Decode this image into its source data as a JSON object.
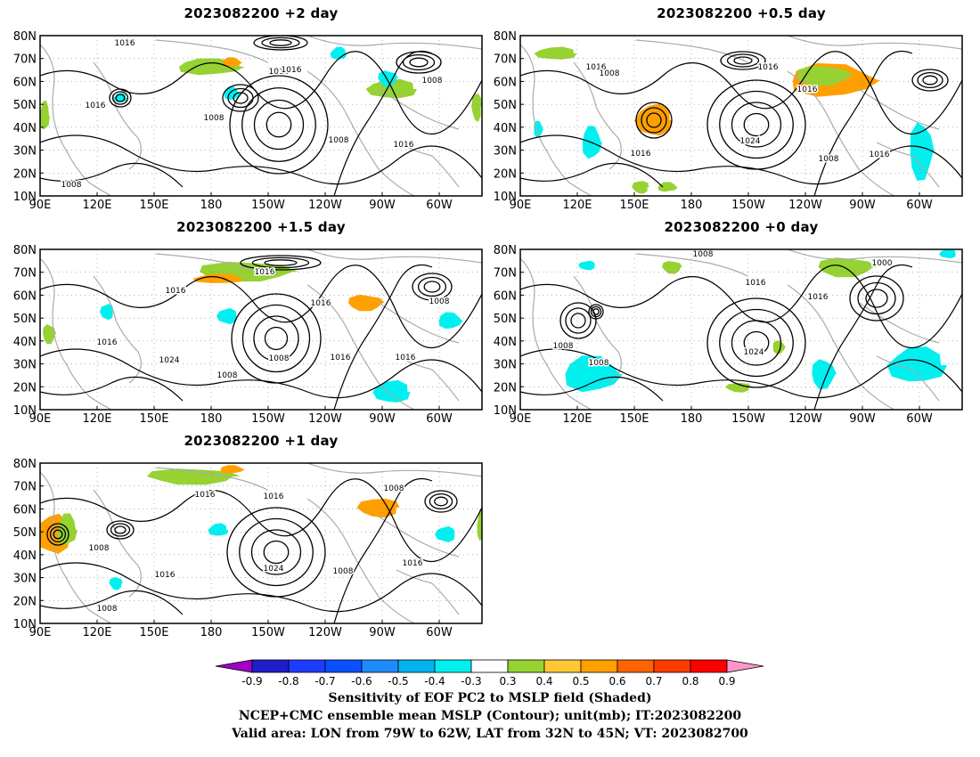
{
  "panels": [
    {
      "id": "p1",
      "title": "2023082200 +2 day",
      "contour_labels": [
        "1016",
        "1016",
        "1016",
        "1008",
        "1016",
        "1008",
        "1008",
        "1016",
        "1008"
      ]
    },
    {
      "id": "p2",
      "title": "2023082200 +0.5 day",
      "contour_labels": [
        "1016",
        "1008",
        "1016",
        "1016",
        "1016",
        "1024",
        "1008",
        "1016"
      ]
    },
    {
      "id": "p3",
      "title": "2023082200 +1.5 day",
      "contour_labels": [
        "1016",
        "1016",
        "1016",
        "1008",
        "1016",
        "1024",
        "1008",
        "1016",
        "1016",
        "1008"
      ]
    },
    {
      "id": "p4",
      "title": "2023082200 +0 day",
      "contour_labels": [
        "1008",
        "1000",
        "1016",
        "1016",
        "1008",
        "1008",
        "1024"
      ]
    },
    {
      "id": "p5",
      "title": "2023082200 +1 day",
      "contour_labels": [
        "1016",
        "1016",
        "1008",
        "1008",
        "1016",
        "1024",
        "1008",
        "1016",
        "1008"
      ]
    }
  ],
  "axes": {
    "lat_labels": [
      "80N",
      "70N",
      "60N",
      "50N",
      "40N",
      "30N",
      "20N",
      "10N"
    ],
    "lon_labels": [
      "90E",
      "120E",
      "150E",
      "180",
      "150W",
      "120W",
      "90W",
      "60W"
    ]
  },
  "colorbar": {
    "labels": [
      "-0.9",
      "-0.8",
      "-0.7",
      "-0.6",
      "-0.5",
      "-0.4",
      "-0.3",
      "0.3",
      "0.4",
      "0.5",
      "0.6",
      "0.7",
      "0.8",
      "0.9"
    ],
    "colors": [
      "#a000c8",
      "#1e1ec8",
      "#1e3cff",
      "#0a50ff",
      "#1e8cff",
      "#00b4f0",
      "#00f0f0",
      "#ffffff",
      "#96d232",
      "#ffc832",
      "#ffa000",
      "#ff6400",
      "#fa3c00",
      "#ff0000",
      "#ff96c8"
    ]
  },
  "caption": {
    "line1": "Sensitivity of EOF PC2 to MSLP field (Shaded)",
    "line2": "NCEP+CMC ensemble mean MSLP (Contour); unit(mb); IT:2023082200",
    "line3": "Valid area: LON from 79W to 62W, LAT from 32N to 45N; VT: 2023082700"
  }
}
